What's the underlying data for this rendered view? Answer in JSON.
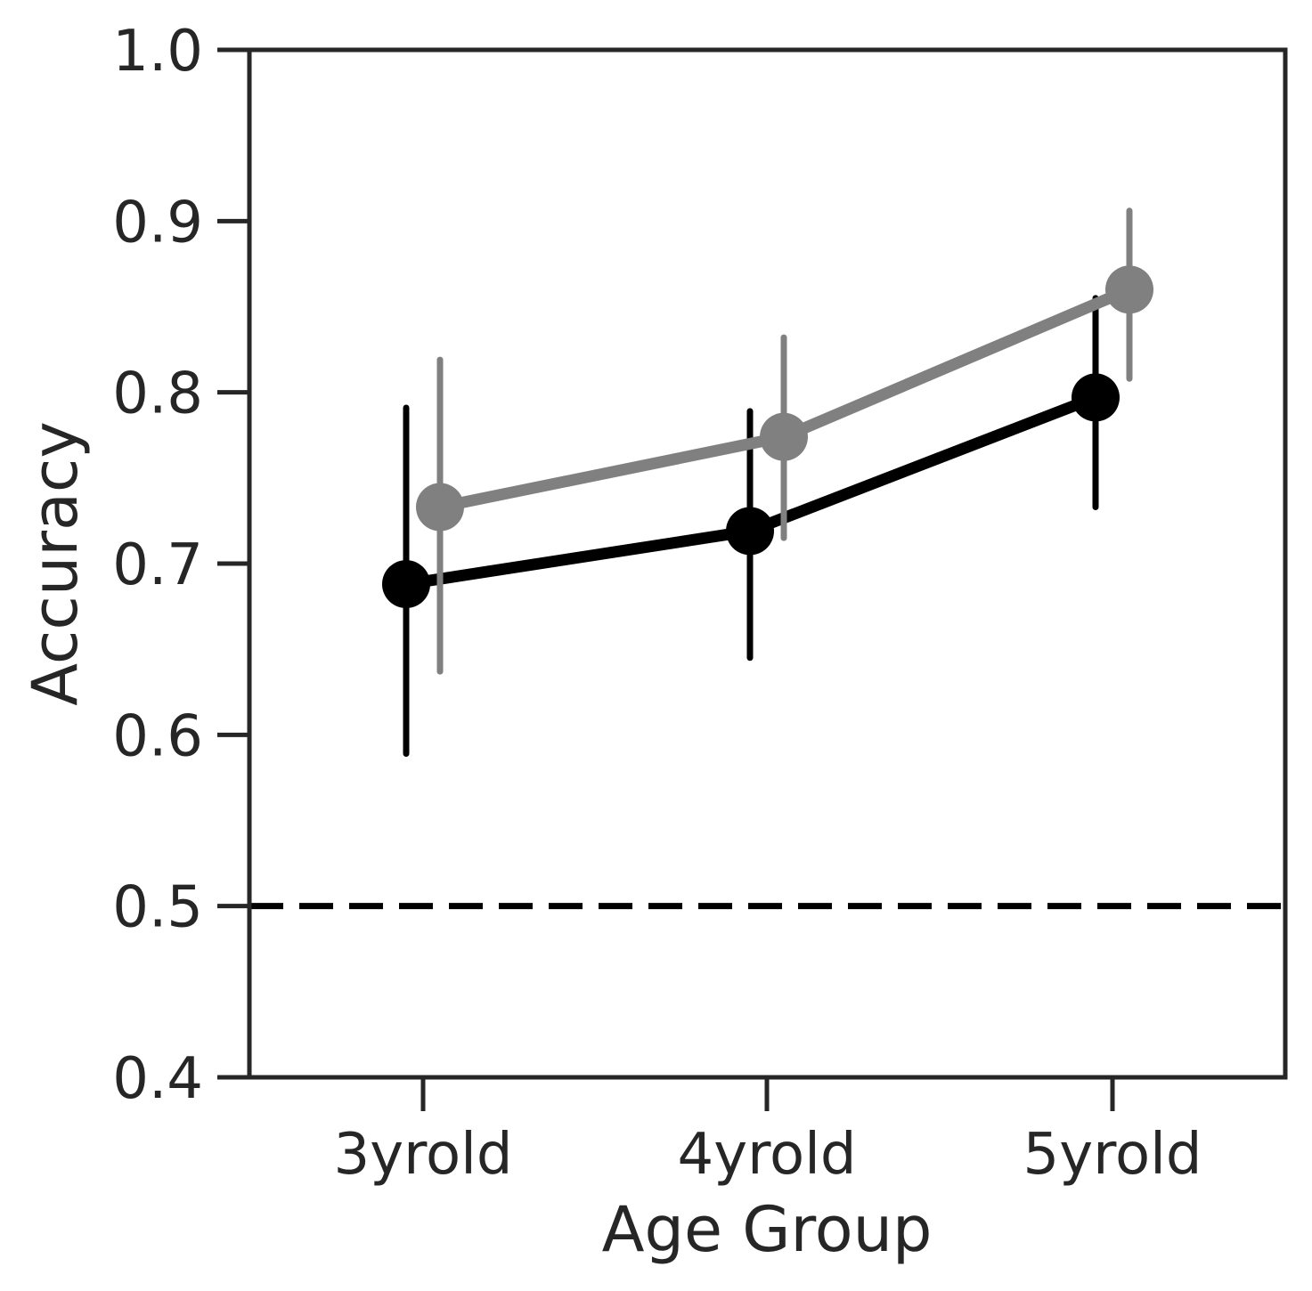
{
  "chart_data": {
    "type": "line",
    "title": "",
    "xlabel": "Age Group",
    "ylabel": "Accuracy",
    "categories": [
      "3yrold",
      "4yrold",
      "5yrold"
    ],
    "ylim": [
      0.4,
      1.0
    ],
    "yticks": [
      "0.4",
      "0.5",
      "0.6",
      "0.7",
      "0.8",
      "0.9",
      "1.0"
    ],
    "grid": false,
    "legend": "none",
    "reference_line": {
      "y": 0.5,
      "style": "dashed",
      "color": "#000000"
    },
    "series": [
      {
        "color": "#000000",
        "values": [
          0.688,
          0.719,
          0.797
        ],
        "ci_low": [
          0.589,
          0.645,
          0.733
        ],
        "ci_high": [
          0.791,
          0.789,
          0.855
        ]
      },
      {
        "color": "#808080",
        "values": [
          0.733,
          0.774,
          0.86
        ],
        "ci_low": [
          0.637,
          0.715,
          0.808
        ],
        "ci_high": [
          0.819,
          0.832,
          0.906
        ]
      }
    ]
  }
}
